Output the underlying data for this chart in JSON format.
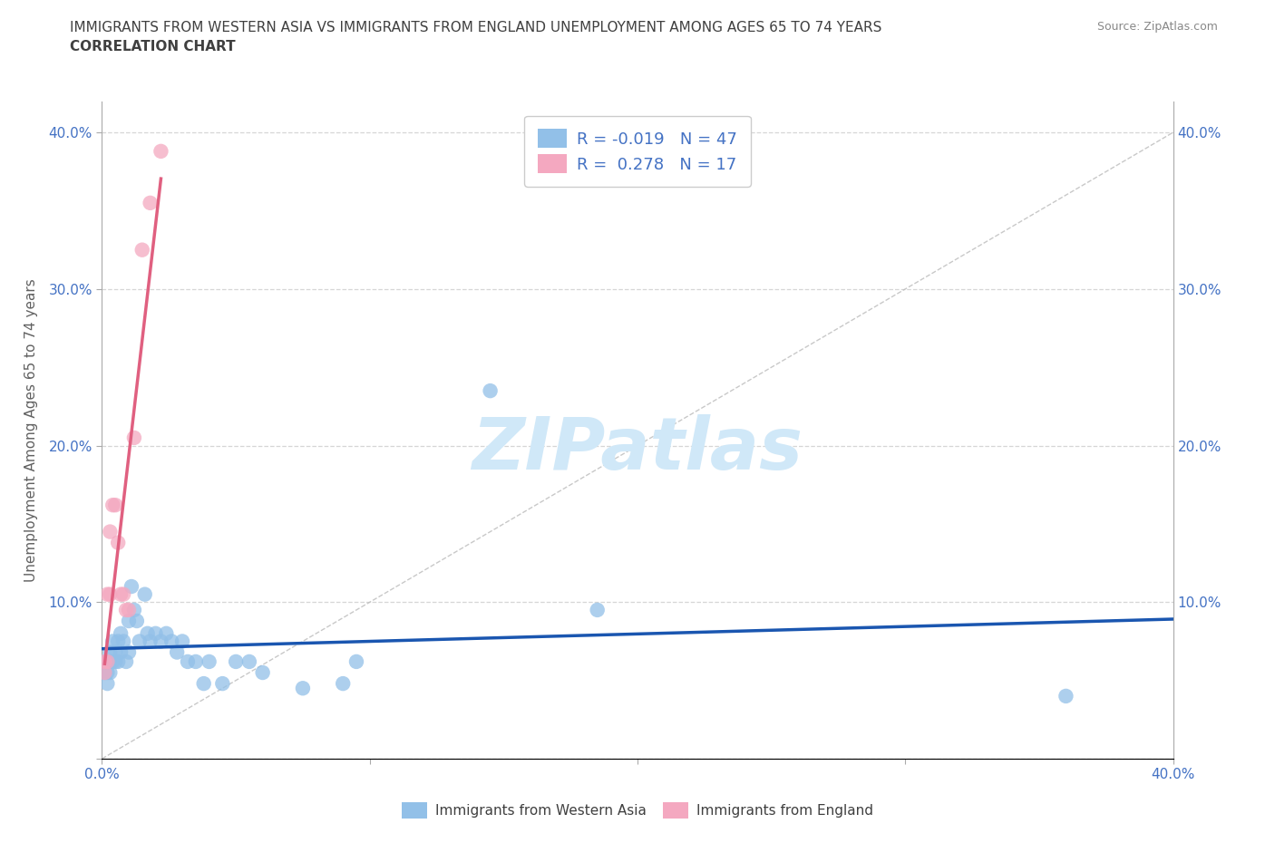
{
  "title_line1": "IMMIGRANTS FROM WESTERN ASIA VS IMMIGRANTS FROM ENGLAND UNEMPLOYMENT AMONG AGES 65 TO 74 YEARS",
  "title_line2": "CORRELATION CHART",
  "source_text": "Source: ZipAtlas.com",
  "ylabel": "Unemployment Among Ages 65 to 74 years",
  "xlim": [
    0.0,
    0.4
  ],
  "ylim": [
    0.0,
    0.42
  ],
  "xticks": [
    0.0,
    0.1,
    0.2,
    0.3,
    0.4
  ],
  "yticks": [
    0.0,
    0.1,
    0.2,
    0.3,
    0.4
  ],
  "blue_R": -0.019,
  "blue_N": 47,
  "pink_R": 0.278,
  "pink_N": 17,
  "blue_color": "#92C0E8",
  "pink_color": "#F4A8C0",
  "blue_line_color": "#1A56B0",
  "pink_line_color": "#E06080",
  "blue_scatter": [
    [
      0.001,
      0.062
    ],
    [
      0.001,
      0.055
    ],
    [
      0.002,
      0.062
    ],
    [
      0.002,
      0.055
    ],
    [
      0.002,
      0.048
    ],
    [
      0.003,
      0.068
    ],
    [
      0.003,
      0.062
    ],
    [
      0.003,
      0.055
    ],
    [
      0.004,
      0.075
    ],
    [
      0.004,
      0.062
    ],
    [
      0.005,
      0.068
    ],
    [
      0.005,
      0.062
    ],
    [
      0.006,
      0.075
    ],
    [
      0.006,
      0.062
    ],
    [
      0.007,
      0.08
    ],
    [
      0.007,
      0.068
    ],
    [
      0.008,
      0.075
    ],
    [
      0.009,
      0.062
    ],
    [
      0.01,
      0.088
    ],
    [
      0.01,
      0.068
    ],
    [
      0.011,
      0.11
    ],
    [
      0.012,
      0.095
    ],
    [
      0.013,
      0.088
    ],
    [
      0.014,
      0.075
    ],
    [
      0.016,
      0.105
    ],
    [
      0.017,
      0.08
    ],
    [
      0.018,
      0.075
    ],
    [
      0.02,
      0.08
    ],
    [
      0.022,
      0.075
    ],
    [
      0.024,
      0.08
    ],
    [
      0.026,
      0.075
    ],
    [
      0.028,
      0.068
    ],
    [
      0.03,
      0.075
    ],
    [
      0.032,
      0.062
    ],
    [
      0.035,
      0.062
    ],
    [
      0.038,
      0.048
    ],
    [
      0.04,
      0.062
    ],
    [
      0.045,
      0.048
    ],
    [
      0.05,
      0.062
    ],
    [
      0.055,
      0.062
    ],
    [
      0.06,
      0.055
    ],
    [
      0.075,
      0.045
    ],
    [
      0.09,
      0.048
    ],
    [
      0.095,
      0.062
    ],
    [
      0.145,
      0.235
    ],
    [
      0.185,
      0.095
    ],
    [
      0.36,
      0.04
    ]
  ],
  "pink_scatter": [
    [
      0.001,
      0.062
    ],
    [
      0.001,
      0.055
    ],
    [
      0.002,
      0.062
    ],
    [
      0.002,
      0.105
    ],
    [
      0.003,
      0.105
    ],
    [
      0.003,
      0.145
    ],
    [
      0.004,
      0.162
    ],
    [
      0.005,
      0.162
    ],
    [
      0.006,
      0.138
    ],
    [
      0.007,
      0.105
    ],
    [
      0.008,
      0.105
    ],
    [
      0.009,
      0.095
    ],
    [
      0.01,
      0.095
    ],
    [
      0.012,
      0.205
    ],
    [
      0.015,
      0.325
    ],
    [
      0.018,
      0.355
    ],
    [
      0.022,
      0.388
    ]
  ],
  "pink_line_xrange": [
    0.001,
    0.022
  ],
  "watermark": "ZIPatlas",
  "watermark_color": "#D0E8F8",
  "background_color": "#FFFFFF",
  "grid_color": "#CCCCCC",
  "title_color": "#404040",
  "axis_label_color": "#606060",
  "tick_color": "#4472C4",
  "source_color": "#888888"
}
